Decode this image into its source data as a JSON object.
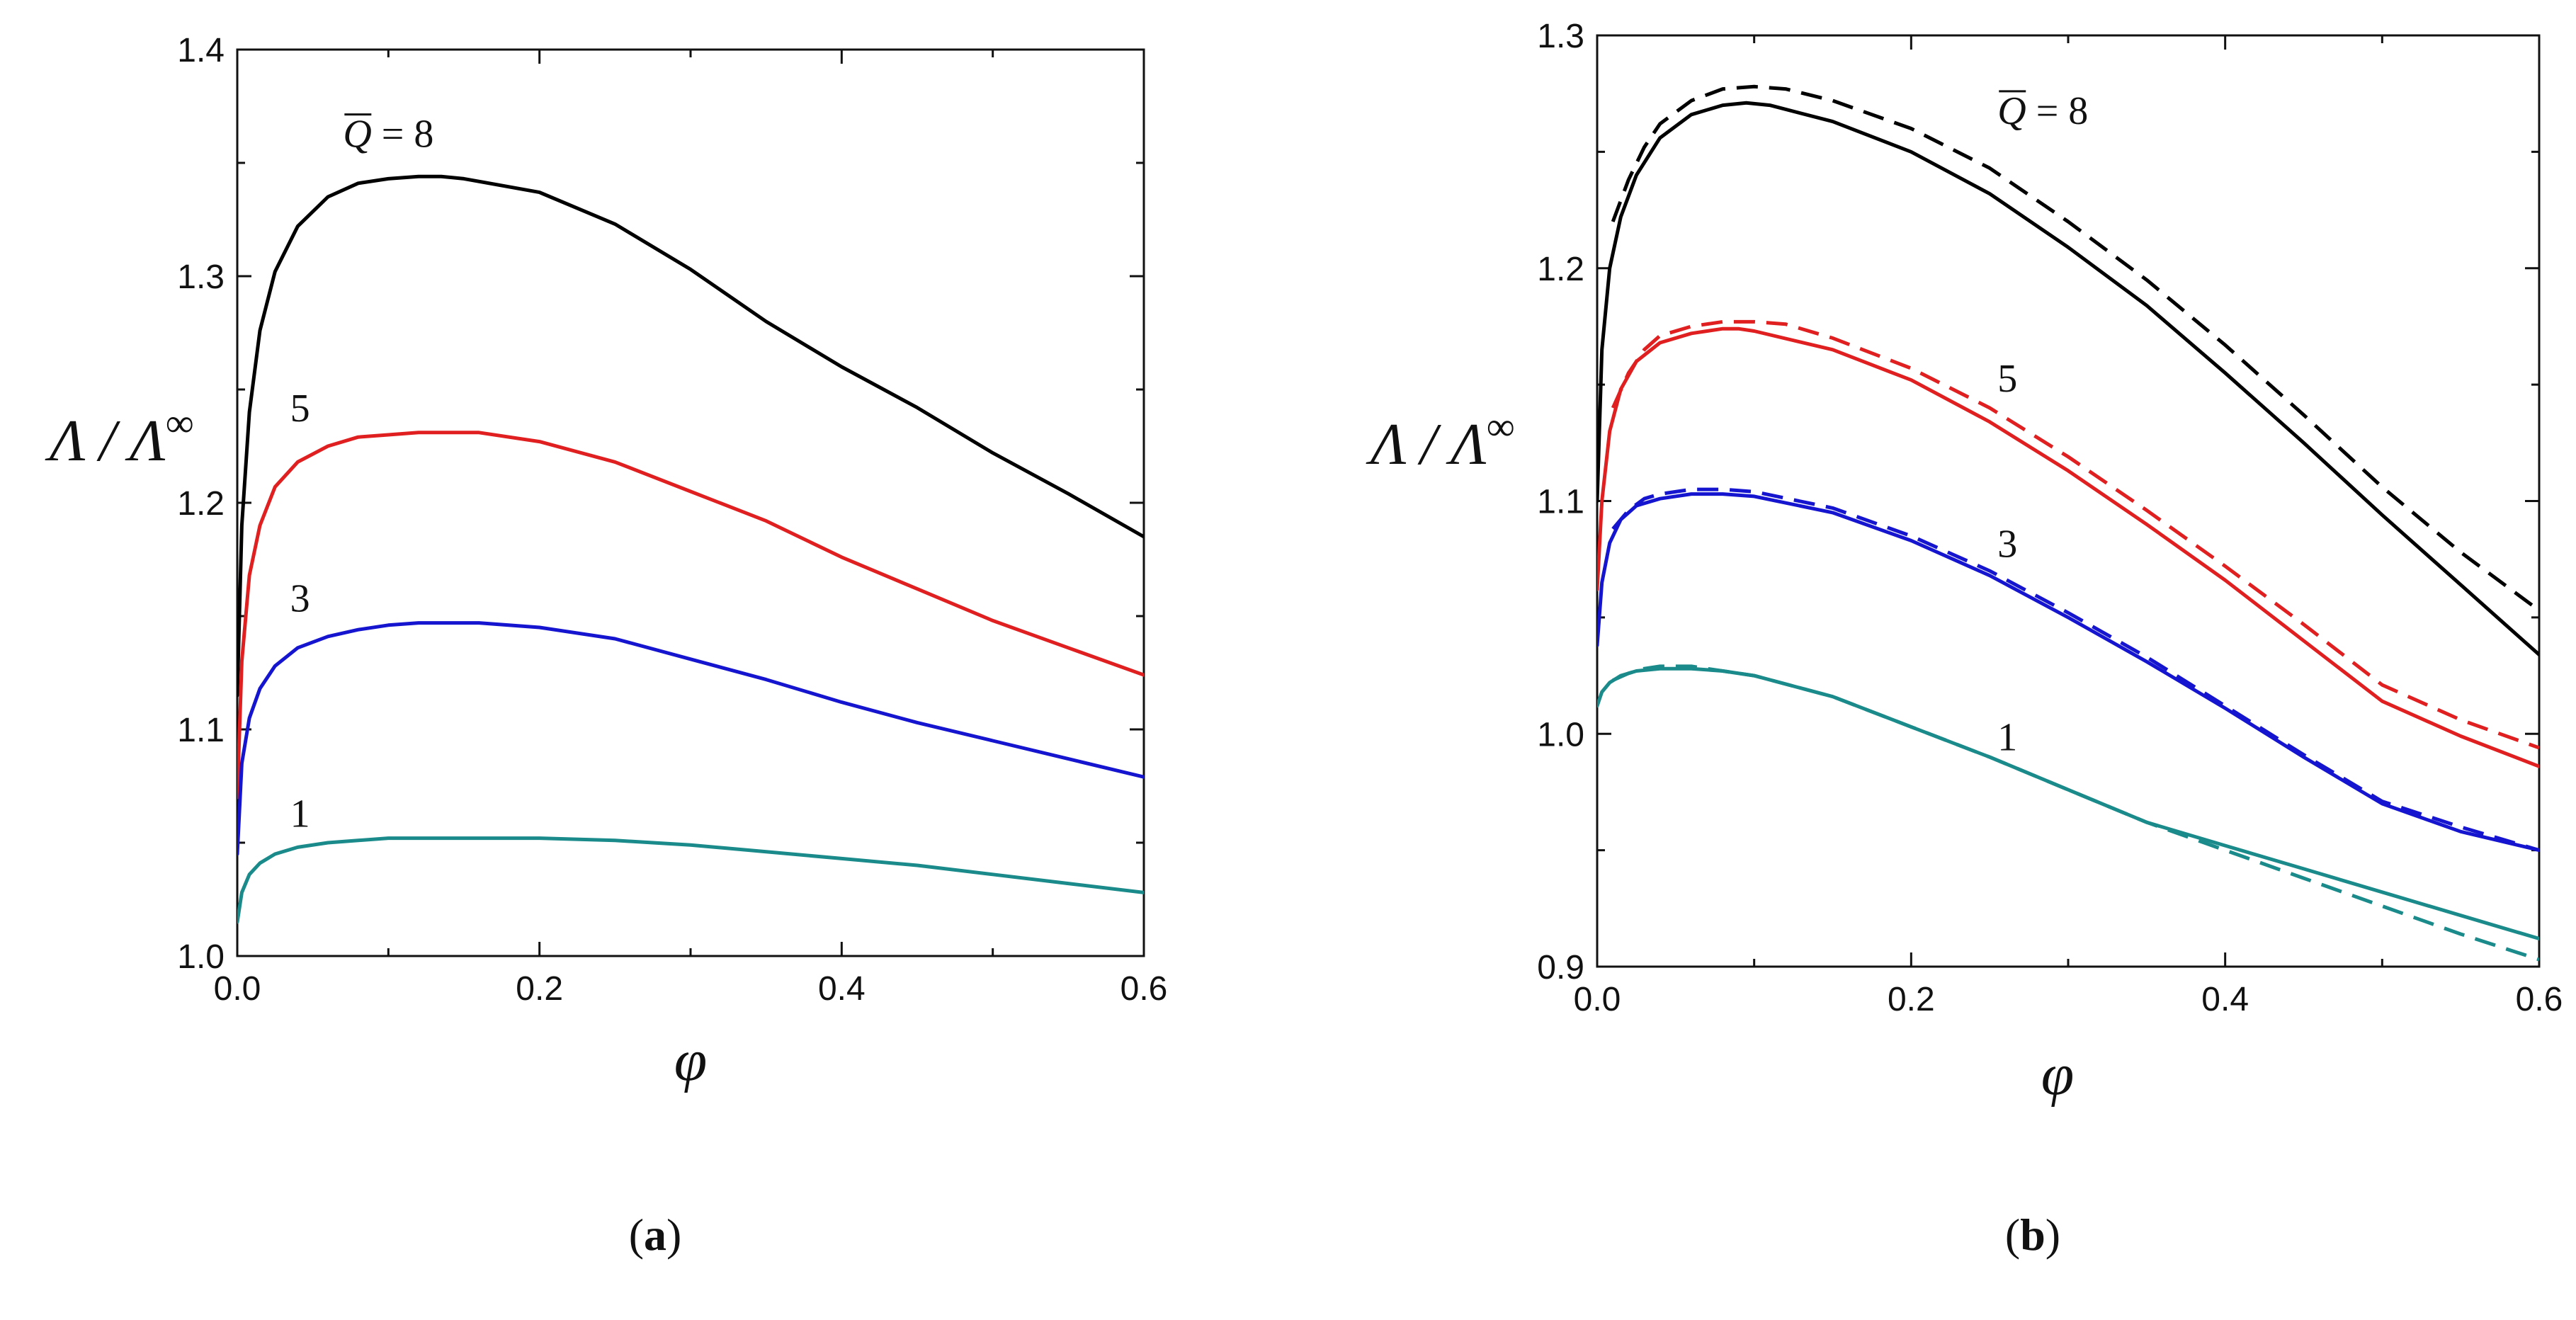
{
  "chart_data": [
    {
      "panel": "a",
      "type": "line",
      "caption": {
        "pre": "(",
        "letter": "a",
        "post": ")"
      },
      "xlabel": "φ",
      "ylabel": {
        "main": "Λ / Λ",
        "sup": "∞"
      },
      "xlim": [
        0.0,
        0.6
      ],
      "ylim": [
        1.0,
        1.4
      ],
      "xticks": [
        0.0,
        0.2,
        0.4,
        0.6
      ],
      "xtick_labels": [
        "0.0",
        "0.2",
        "0.4",
        "0.6"
      ],
      "yticks": [
        1.0,
        1.1,
        1.2,
        1.3,
        1.4
      ],
      "ytick_labels": [
        "1.0",
        "1.1",
        "1.2",
        "1.3",
        "1.4"
      ],
      "series": [
        {
          "name": "8",
          "label": "8",
          "label_prefix": "Q",
          "label_eq": " = ",
          "color": "#000000",
          "dashed": false,
          "x": [
            0.0,
            0.003,
            0.008,
            0.015,
            0.025,
            0.04,
            0.06,
            0.08,
            0.1,
            0.12,
            0.135,
            0.15,
            0.2,
            0.25,
            0.3,
            0.35,
            0.4,
            0.45,
            0.5,
            0.55,
            0.6
          ],
          "y": [
            1.115,
            1.19,
            1.24,
            1.276,
            1.302,
            1.322,
            1.335,
            1.341,
            1.343,
            1.344,
            1.344,
            1.343,
            1.337,
            1.323,
            1.303,
            1.28,
            1.26,
            1.242,
            1.222,
            1.204,
            1.185
          ],
          "label_at": [
            0.07,
            1.357
          ]
        },
        {
          "name": "5",
          "label": "5",
          "color": "#e02020",
          "dashed": false,
          "x": [
            0.0,
            0.003,
            0.008,
            0.015,
            0.025,
            0.04,
            0.06,
            0.08,
            0.1,
            0.12,
            0.14,
            0.16,
            0.2,
            0.25,
            0.3,
            0.35,
            0.4,
            0.45,
            0.5,
            0.55,
            0.6
          ],
          "y": [
            1.07,
            1.13,
            1.168,
            1.19,
            1.207,
            1.218,
            1.225,
            1.229,
            1.23,
            1.231,
            1.231,
            1.231,
            1.227,
            1.218,
            1.205,
            1.192,
            1.176,
            1.162,
            1.148,
            1.136,
            1.124
          ],
          "label_at": [
            0.035,
            1.236
          ]
        },
        {
          "name": "3",
          "label": "3",
          "color": "#1515d0",
          "dashed": false,
          "x": [
            0.0,
            0.003,
            0.008,
            0.015,
            0.025,
            0.04,
            0.06,
            0.08,
            0.1,
            0.12,
            0.14,
            0.16,
            0.2,
            0.25,
            0.3,
            0.35,
            0.4,
            0.45,
            0.5,
            0.55,
            0.6
          ],
          "y": [
            1.045,
            1.085,
            1.105,
            1.118,
            1.128,
            1.136,
            1.141,
            1.144,
            1.146,
            1.147,
            1.147,
            1.147,
            1.145,
            1.14,
            1.131,
            1.122,
            1.112,
            1.103,
            1.095,
            1.087,
            1.079
          ],
          "label_at": [
            0.035,
            1.152
          ]
        },
        {
          "name": "1",
          "label": "1",
          "color": "#1a8a8a",
          "dashed": false,
          "x": [
            0.0,
            0.003,
            0.008,
            0.015,
            0.025,
            0.04,
            0.06,
            0.08,
            0.1,
            0.12,
            0.15,
            0.2,
            0.25,
            0.3,
            0.35,
            0.4,
            0.45,
            0.5,
            0.55,
            0.6
          ],
          "y": [
            1.015,
            1.028,
            1.036,
            1.041,
            1.045,
            1.048,
            1.05,
            1.051,
            1.052,
            1.052,
            1.052,
            1.052,
            1.051,
            1.049,
            1.046,
            1.043,
            1.04,
            1.036,
            1.032,
            1.028
          ],
          "label_at": [
            0.035,
            1.057
          ]
        }
      ]
    },
    {
      "panel": "b",
      "type": "line",
      "caption": {
        "pre": "(",
        "letter": "b",
        "post": ")"
      },
      "xlabel": "φ",
      "ylabel": {
        "main": "Λ / Λ",
        "sup": "∞"
      },
      "xlim": [
        0.0,
        0.6
      ],
      "ylim": [
        0.9,
        1.3
      ],
      "xticks": [
        0.0,
        0.2,
        0.4,
        0.6
      ],
      "xtick_labels": [
        "0.0",
        "0.2",
        "0.4",
        "0.6"
      ],
      "yticks": [
        0.9,
        1.0,
        1.1,
        1.2,
        1.3
      ],
      "ytick_labels": [
        "0.9",
        "1.0",
        "1.1",
        "1.2",
        "1.3"
      ],
      "series": [
        {
          "name": "8",
          "label": "8",
          "label_prefix": "Q",
          "label_eq": " = ",
          "color": "#000000",
          "dashed": false,
          "x": [
            0.0,
            0.003,
            0.008,
            0.015,
            0.025,
            0.04,
            0.06,
            0.08,
            0.095,
            0.11,
            0.15,
            0.2,
            0.25,
            0.3,
            0.35,
            0.4,
            0.45,
            0.5,
            0.55,
            0.6
          ],
          "y": [
            1.1,
            1.165,
            1.2,
            1.222,
            1.24,
            1.256,
            1.266,
            1.27,
            1.271,
            1.27,
            1.263,
            1.25,
            1.232,
            1.209,
            1.184,
            1.155,
            1.125,
            1.094,
            1.064,
            1.034
          ],
          "label_at": [
            0.255,
            1.262
          ]
        },
        {
          "name": "8 (dashed)",
          "color": "#000000",
          "dashed": true,
          "x": [
            0.01,
            0.02,
            0.03,
            0.04,
            0.06,
            0.08,
            0.1,
            0.12,
            0.15,
            0.2,
            0.25,
            0.3,
            0.35,
            0.4,
            0.45,
            0.5,
            0.55,
            0.6
          ],
          "y": [
            1.22,
            1.238,
            1.252,
            1.262,
            1.272,
            1.277,
            1.278,
            1.277,
            1.272,
            1.26,
            1.243,
            1.22,
            1.195,
            1.167,
            1.137,
            1.106,
            1.078,
            1.053
          ]
        },
        {
          "name": "5",
          "label": "5",
          "color": "#e02020",
          "dashed": false,
          "x": [
            0.0,
            0.003,
            0.008,
            0.015,
            0.025,
            0.04,
            0.06,
            0.08,
            0.09,
            0.1,
            0.15,
            0.2,
            0.25,
            0.3,
            0.35,
            0.4,
            0.45,
            0.5,
            0.55,
            0.6
          ],
          "y": [
            1.062,
            1.1,
            1.13,
            1.148,
            1.16,
            1.168,
            1.172,
            1.174,
            1.174,
            1.173,
            1.165,
            1.152,
            1.134,
            1.113,
            1.09,
            1.066,
            1.04,
            1.014,
            0.999,
            0.986
          ],
          "label_at": [
            0.255,
            1.147
          ]
        },
        {
          "name": "5 (dashed)",
          "color": "#e02020",
          "dashed": true,
          "x": [
            0.01,
            0.02,
            0.03,
            0.04,
            0.06,
            0.08,
            0.1,
            0.12,
            0.15,
            0.2,
            0.25,
            0.3,
            0.35,
            0.4,
            0.45,
            0.5,
            0.55,
            0.6
          ],
          "y": [
            1.14,
            1.155,
            1.165,
            1.171,
            1.175,
            1.177,
            1.177,
            1.176,
            1.17,
            1.157,
            1.14,
            1.119,
            1.096,
            1.072,
            1.047,
            1.021,
            1.006,
            0.994
          ]
        },
        {
          "name": "3",
          "label": "3",
          "color": "#1515d0",
          "dashed": false,
          "x": [
            0.0,
            0.003,
            0.008,
            0.015,
            0.025,
            0.04,
            0.06,
            0.08,
            0.1,
            0.15,
            0.2,
            0.25,
            0.3,
            0.35,
            0.4,
            0.45,
            0.5,
            0.55,
            0.6
          ],
          "y": [
            1.038,
            1.065,
            1.082,
            1.092,
            1.098,
            1.101,
            1.103,
            1.103,
            1.102,
            1.095,
            1.083,
            1.068,
            1.05,
            1.031,
            1.011,
            0.99,
            0.97,
            0.958,
            0.95
          ],
          "label_at": [
            0.255,
            1.076
          ]
        },
        {
          "name": "3 (dashed)",
          "color": "#1515d0",
          "dashed": true,
          "x": [
            0.01,
            0.02,
            0.03,
            0.04,
            0.06,
            0.08,
            0.1,
            0.15,
            0.2,
            0.25,
            0.3,
            0.35,
            0.4,
            0.45,
            0.5,
            0.55,
            0.6
          ],
          "y": [
            1.088,
            1.096,
            1.101,
            1.103,
            1.105,
            1.105,
            1.104,
            1.097,
            1.085,
            1.07,
            1.052,
            1.033,
            1.012,
            0.991,
            0.971,
            0.96,
            0.95
          ]
        },
        {
          "name": "1",
          "label": "1",
          "color": "#1a8a8a",
          "dashed": false,
          "x": [
            0.0,
            0.003,
            0.008,
            0.015,
            0.025,
            0.04,
            0.05,
            0.06,
            0.08,
            0.1,
            0.15,
            0.2,
            0.25,
            0.3,
            0.35,
            0.4,
            0.45,
            0.5,
            0.55,
            0.6
          ],
          "y": [
            1.012,
            1.018,
            1.022,
            1.025,
            1.027,
            1.028,
            1.028,
            1.028,
            1.027,
            1.025,
            1.016,
            1.003,
            0.99,
            0.976,
            0.962,
            0.952,
            0.942,
            0.932,
            0.922,
            0.912
          ],
          "label_at": [
            0.255,
            0.993
          ]
        },
        {
          "name": "1 (dashed)",
          "color": "#1a8a8a",
          "dashed": true,
          "x": [
            0.01,
            0.02,
            0.03,
            0.04,
            0.05,
            0.06,
            0.08,
            0.1,
            0.15,
            0.2,
            0.25,
            0.3,
            0.35,
            0.4,
            0.45,
            0.5,
            0.55,
            0.6
          ],
          "y": [
            1.023,
            1.026,
            1.028,
            1.029,
            1.029,
            1.029,
            1.027,
            1.025,
            1.016,
            1.003,
            0.99,
            0.976,
            0.962,
            0.95,
            0.938,
            0.926,
            0.914,
            0.903
          ]
        }
      ]
    }
  ]
}
